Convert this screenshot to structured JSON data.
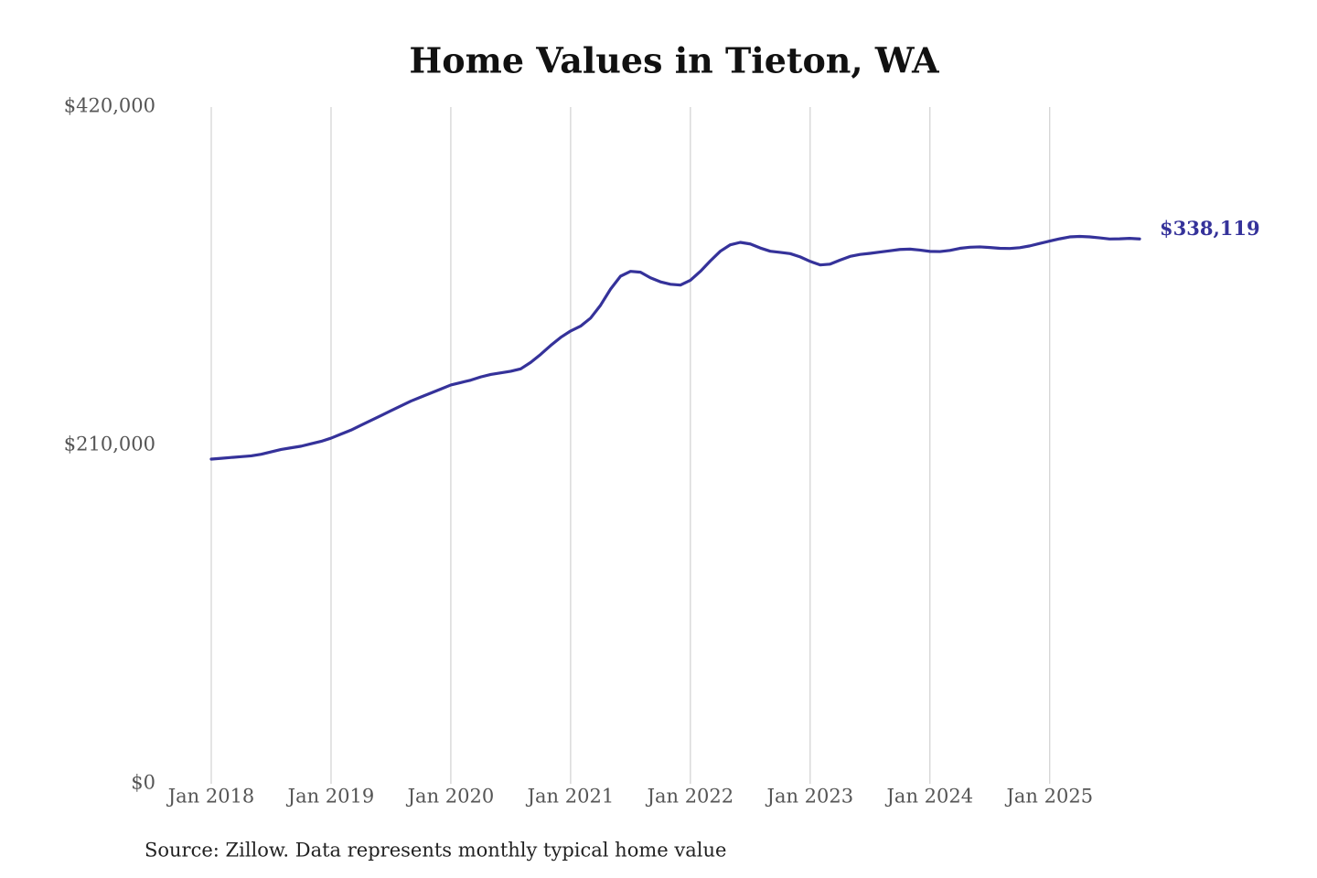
{
  "chart_data": {
    "type": "line",
    "title": "Home Values in Tieton, WA",
    "note": "Source: Zillow. Data represents monthly typical home value",
    "x": [
      "2018-01",
      "2018-02",
      "2018-03",
      "2018-04",
      "2018-05",
      "2018-06",
      "2018-07",
      "2018-08",
      "2018-09",
      "2018-10",
      "2018-11",
      "2018-12",
      "2019-01",
      "2019-02",
      "2019-03",
      "2019-04",
      "2019-05",
      "2019-06",
      "2019-07",
      "2019-08",
      "2019-09",
      "2019-10",
      "2019-11",
      "2019-12",
      "2020-01",
      "2020-02",
      "2020-03",
      "2020-04",
      "2020-05",
      "2020-06",
      "2020-07",
      "2020-08",
      "2020-09",
      "2020-10",
      "2020-11",
      "2020-12",
      "2021-01",
      "2021-02",
      "2021-03",
      "2021-04",
      "2021-05",
      "2021-06",
      "2021-07",
      "2021-08",
      "2021-09",
      "2021-10",
      "2021-11",
      "2021-12",
      "2022-01",
      "2022-02",
      "2022-03",
      "2022-04",
      "2022-05",
      "2022-06",
      "2022-07",
      "2022-08",
      "2022-09",
      "2022-10",
      "2022-11",
      "2022-12",
      "2023-01",
      "2023-02",
      "2023-03",
      "2023-04",
      "2023-05",
      "2023-06",
      "2023-07",
      "2023-08",
      "2023-09",
      "2023-10",
      "2023-11",
      "2023-12",
      "2024-01",
      "2024-02",
      "2024-03",
      "2024-04",
      "2024-05",
      "2024-06",
      "2024-07",
      "2024-08",
      "2024-09",
      "2024-10",
      "2024-11",
      "2024-12",
      "2025-01",
      "2025-02",
      "2025-03",
      "2025-04",
      "2025-05",
      "2025-06",
      "2025-07",
      "2025-08",
      "2025-09",
      "2025-10"
    ],
    "series": [
      {
        "name": "Typical home value",
        "color": "#35329a",
        "values": [
          201500,
          202000,
          202500,
          203000,
          203500,
          204500,
          206000,
          207500,
          208500,
          209500,
          211000,
          212500,
          214500,
          217000,
          219500,
          222500,
          225500,
          228500,
          231500,
          234500,
          237500,
          240000,
          242500,
          245000,
          247500,
          249000,
          250500,
          252500,
          254000,
          255000,
          256000,
          257500,
          261500,
          266500,
          272000,
          277000,
          281000,
          284000,
          289000,
          297000,
          307000,
          315000,
          318000,
          317500,
          314000,
          311500,
          310000,
          309500,
          312500,
          318000,
          324500,
          330500,
          334500,
          336000,
          335000,
          332500,
          330500,
          329800,
          329000,
          327000,
          324200,
          322000,
          322500,
          325000,
          327300,
          328500,
          329200,
          330000,
          330800,
          331600,
          331800,
          331200,
          330400,
          330300,
          331000,
          332300,
          333000,
          333200,
          332800,
          332300,
          332200,
          332700,
          333800,
          335300,
          336800,
          338200,
          339400,
          339700,
          339400,
          338800,
          338100,
          338200,
          338500,
          338119
        ],
        "value_labels": [
          null,
          null,
          null,
          null,
          null,
          null,
          null,
          null,
          null,
          null,
          null,
          null,
          null,
          null,
          null,
          null,
          null,
          null,
          null,
          null,
          null,
          null,
          null,
          null,
          null,
          null,
          null,
          null,
          null,
          null,
          null,
          null,
          null,
          null,
          null,
          null,
          null,
          null,
          null,
          null,
          null,
          null,
          null,
          null,
          null,
          null,
          null,
          null,
          null,
          null,
          null,
          null,
          null,
          null,
          null,
          null,
          null,
          null,
          null,
          null,
          null,
          null,
          null,
          null,
          null,
          null,
          null,
          null,
          null,
          null,
          null,
          null,
          null,
          null,
          null,
          null,
          null,
          null,
          null,
          null,
          null,
          null,
          null,
          null,
          null,
          null,
          null,
          null,
          null,
          null,
          null,
          null,
          null,
          "$338,119"
        ]
      }
    ],
    "xlim": [
      "2018-01",
      "2025-10"
    ],
    "xticks": [
      {
        "value": "2018-01",
        "label": "Jan 2018"
      },
      {
        "value": "2019-01",
        "label": "Jan 2019"
      },
      {
        "value": "2020-01",
        "label": "Jan 2020"
      },
      {
        "value": "2021-01",
        "label": "Jan 2021"
      },
      {
        "value": "2022-01",
        "label": "Jan 2022"
      },
      {
        "value": "2023-01",
        "label": "Jan 2023"
      },
      {
        "value": "2024-01",
        "label": "Jan 2024"
      },
      {
        "value": "2025-01",
        "label": "Jan 2025"
      }
    ],
    "ylim": [
      0,
      420000
    ],
    "yticks": [
      {
        "value": 0,
        "label": "$0"
      },
      {
        "value": 210000,
        "label": "$210,000"
      },
      {
        "value": 420000,
        "label": "$420,000"
      }
    ],
    "grid": "x"
  }
}
